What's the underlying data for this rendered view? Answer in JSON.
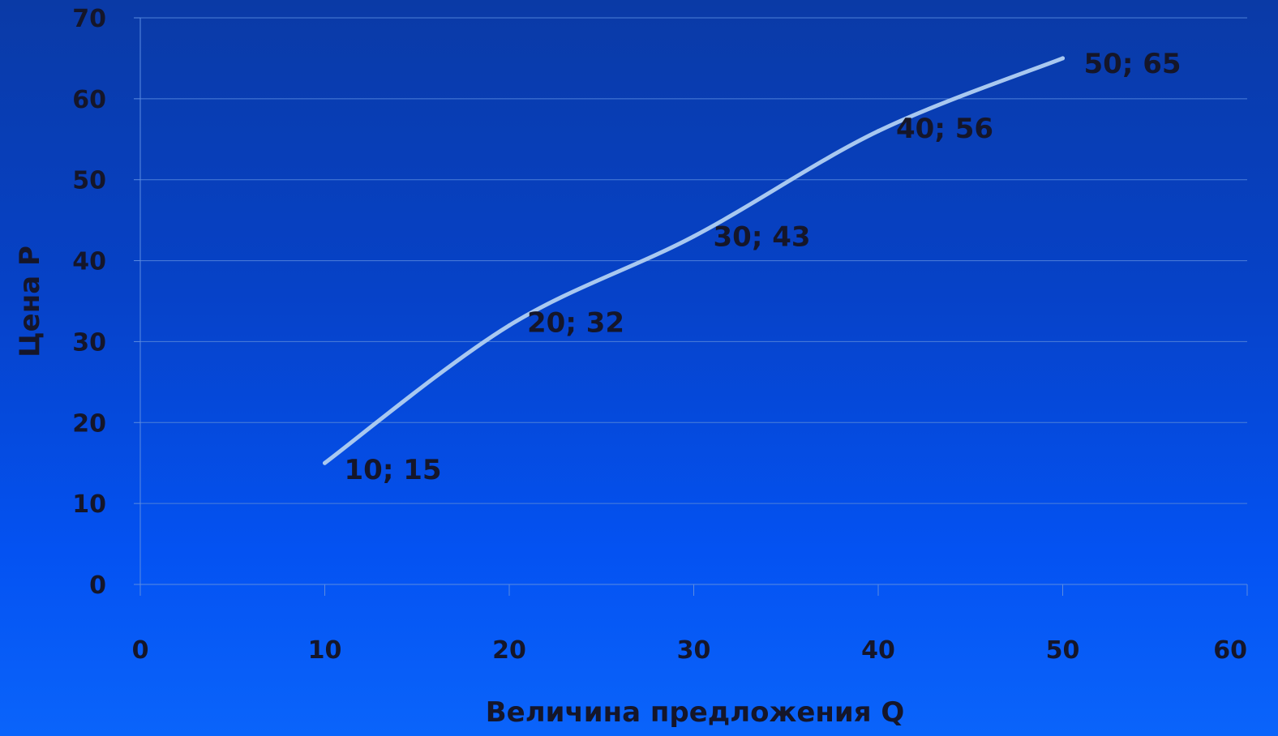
{
  "chart_data": {
    "type": "line",
    "title": "",
    "xlabel": "Величина предложения Q",
    "ylabel": "Цена P",
    "xlim": [
      0,
      60
    ],
    "ylim": [
      0,
      70
    ],
    "x_ticks": [
      0,
      10,
      20,
      30,
      40,
      50,
      60
    ],
    "y_ticks": [
      0,
      10,
      20,
      30,
      40,
      50,
      60,
      70
    ],
    "x_tick_labels": [
      "0",
      "10",
      "20",
      "30",
      "40",
      "50",
      "60"
    ],
    "y_tick_labels": [
      "0",
      "10",
      "20",
      "30",
      "40",
      "50",
      "60",
      "70"
    ],
    "grid": true,
    "smooth": true,
    "series": [
      {
        "x": [
          10,
          20,
          30,
          40,
          50
        ],
        "y": [
          15,
          32,
          43,
          56,
          65
        ],
        "color": "#a8c8f0",
        "data_labels": [
          "10; 15",
          "20; 32",
          "30; 43",
          "40; 56",
          "50; 65"
        ]
      }
    ]
  },
  "colors": {
    "text": "#15162a",
    "grid": "#4d7fd9",
    "axis": "#5b8be0",
    "line": "#a8c8f0"
  }
}
